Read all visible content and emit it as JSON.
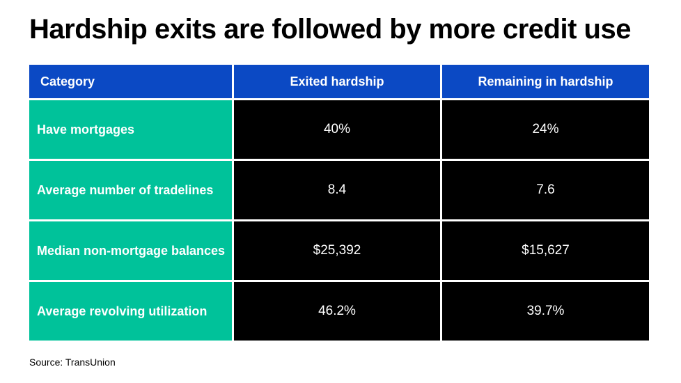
{
  "title": "Hardship exits are followed by more credit use",
  "source": "Source: TransUnion",
  "colors": {
    "header_bg": "#0b49c4",
    "row_label_bg": "#00c29a",
    "value_bg": "#000000",
    "text": "#ffffff"
  },
  "chart_data": {
    "type": "table",
    "title": "Hardship exits are followed by more credit use",
    "columns": [
      "Category",
      "Exited hardship",
      "Remaining in hardship"
    ],
    "rows": [
      {
        "category": "Have mortgages",
        "exited": "40%",
        "remaining": "24%"
      },
      {
        "category": "Average number of tradelines",
        "exited": "8.4",
        "remaining": "7.6"
      },
      {
        "category": "Median non-mortgage balances",
        "exited": "$25,392",
        "remaining": "$15,627"
      },
      {
        "category": "Average revolving utilization",
        "exited": "46.2%",
        "remaining": "39.7%"
      }
    ]
  }
}
